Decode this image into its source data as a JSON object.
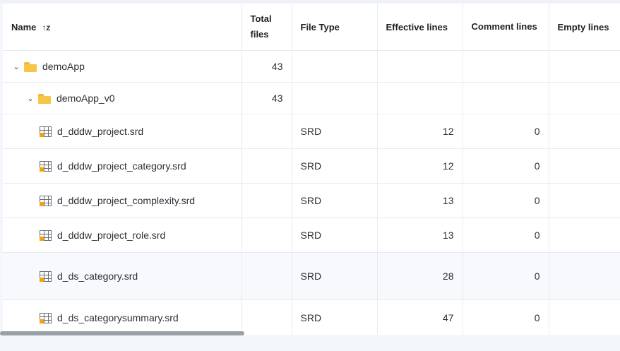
{
  "columns": {
    "name": "Name",
    "total_files": "Total files",
    "file_type": "File Type",
    "effective_lines": "Effective lines",
    "comment_lines": "Comment lines",
    "empty_lines": "Empty lines"
  },
  "sort_icon": "↑z",
  "rows": [
    {
      "name": "demoApp",
      "total": "43",
      "type": "",
      "effective": "",
      "comment": ""
    },
    {
      "name": "demoApp_v0",
      "total": "43",
      "type": "",
      "effective": "",
      "comment": ""
    },
    {
      "name": "d_dddw_project.srd",
      "total": "",
      "type": "SRD",
      "effective": "12",
      "comment": "0"
    },
    {
      "name": "d_dddw_project_category.srd",
      "total": "",
      "type": "SRD",
      "effective": "12",
      "comment": "0"
    },
    {
      "name": "d_dddw_project_complexity.srd",
      "total": "",
      "type": "SRD",
      "effective": "13",
      "comment": "0"
    },
    {
      "name": "d_dddw_project_role.srd",
      "total": "",
      "type": "SRD",
      "effective": "13",
      "comment": "0"
    },
    {
      "name": "d_ds_category.srd",
      "total": "",
      "type": "SRD",
      "effective": "28",
      "comment": "0"
    },
    {
      "name": "d_ds_categorysummary.srd",
      "total": "",
      "type": "SRD",
      "effective": "47",
      "comment": "0"
    }
  ]
}
